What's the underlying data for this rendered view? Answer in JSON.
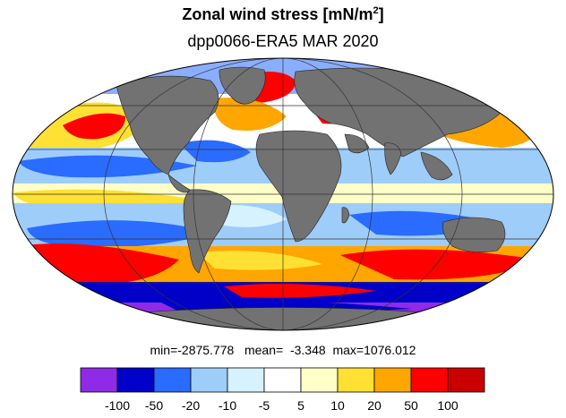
{
  "header": {
    "title": "Zonal wind stress [mN/m",
    "title_sup": "2",
    "title_end": "]",
    "subtitle": "dpp0066-ERA5  MAR 2020"
  },
  "stats": {
    "min_label": "min=",
    "min": "-2875.778",
    "mean_label": "mean=",
    "mean": "-3.348",
    "max_label": "max=",
    "max": "1076.012"
  },
  "colorbar": {
    "colors": [
      "#8f2be6",
      "#0000c8",
      "#2a6cff",
      "#9fcdf9",
      "#d7f2ff",
      "#ffffff",
      "#ffffc8",
      "#ffe033",
      "#ffa600",
      "#ff0000",
      "#c80000"
    ],
    "tick_labels": [
      "-100",
      "-50",
      "-20",
      "-10",
      "-5",
      "5",
      "10",
      "20",
      "50",
      "100"
    ]
  },
  "map": {
    "land_color": "#727272",
    "ocean_base_color": "#ffffff",
    "projection": "Mollweide"
  }
}
